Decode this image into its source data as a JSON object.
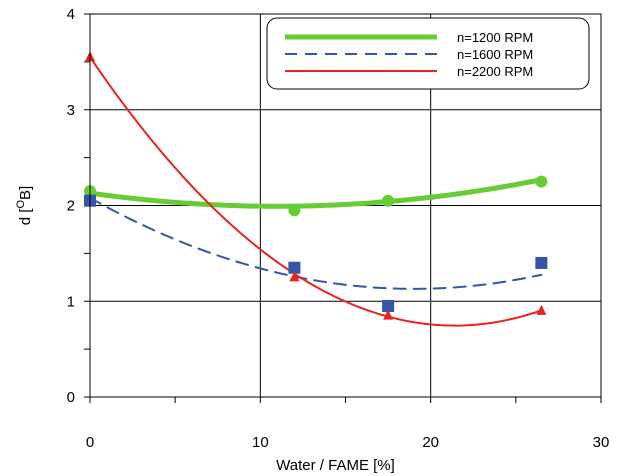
{
  "chart_data": {
    "type": "line",
    "xlabel": "Water / FAME  [%]",
    "ylabel_main": "d [",
    "ylabel_sup": "O",
    "ylabel_tail": "B]",
    "xlim": [
      0,
      30
    ],
    "ylim": [
      0,
      4
    ],
    "xticks": [
      0,
      10,
      20,
      30
    ],
    "yticks": [
      0,
      1,
      2,
      3,
      4
    ],
    "grid": true,
    "legend_position": "top-right",
    "series": [
      {
        "name": "n=1200 RPM",
        "color": "#66cc33",
        "line_style": "solid-thick",
        "marker": "circle",
        "x": [
          0,
          12,
          17.5,
          26.5
        ],
        "y": [
          2.15,
          1.95,
          2.05,
          2.25
        ],
        "fit_coeffs": [
          2.13,
          -0.0252,
          0.00115
        ]
      },
      {
        "name": "n=1600 RPM",
        "color": "#3355aa",
        "line_style": "dashed",
        "marker": "square",
        "x": [
          0,
          12,
          17.5,
          26.5
        ],
        "y": [
          2.05,
          1.35,
          0.95,
          1.4
        ],
        "fit_coeffs": [
          2.08,
          -0.1,
          0.00263
        ]
      },
      {
        "name": "n=2200 RPM",
        "color": "#e8231e",
        "line_style": "solid-thin",
        "marker": "triangle",
        "x": [
          0,
          12,
          17.5,
          26.5
        ],
        "y": [
          3.55,
          1.25,
          0.85,
          0.9
        ],
        "fit_coeffs": [
          3.55,
          -0.262,
          0.00612
        ]
      }
    ]
  }
}
